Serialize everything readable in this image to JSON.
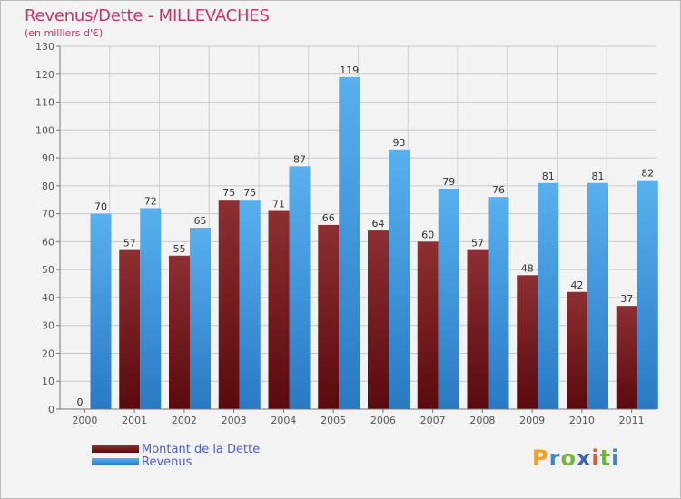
{
  "title": "Revenus/Dette - MILLEVACHES",
  "subtitle": "(en milliers d'€)",
  "logo": {
    "letters": [
      "P",
      "r",
      "o",
      "x",
      "i",
      "t",
      "i"
    ],
    "colors": [
      "#f0a02c",
      "#3f88c5",
      "#77b43f",
      "#3a66b0",
      "#e0562d",
      "#6fb23c",
      "#3f88c5"
    ]
  },
  "legend": [
    {
      "label": "Montant de la Dette",
      "color": "#6e1418"
    },
    {
      "label": "Revenus",
      "color": "#4da3e6"
    }
  ],
  "chart_data": {
    "type": "bar",
    "title": "Revenus/Dette - MILLEVACHES",
    "ylabel": "(en milliers d'€)",
    "xlabel": "",
    "ylim": [
      0,
      130
    ],
    "yticks": [
      0,
      10,
      20,
      30,
      40,
      50,
      60,
      70,
      80,
      90,
      100,
      110,
      120,
      130
    ],
    "grid": true,
    "categories": [
      "2000",
      "2001",
      "2002",
      "2003",
      "2004",
      "2005",
      "2006",
      "2007",
      "2008",
      "2009",
      "2010",
      "2011"
    ],
    "series": [
      {
        "name": "Montant de la Dette",
        "color": "#6e1418",
        "values": [
          0,
          57,
          55,
          75,
          71,
          66,
          64,
          60,
          57,
          48,
          42,
          37
        ]
      },
      {
        "name": "Revenus",
        "color": "#4da3e6",
        "values": [
          70,
          72,
          65,
          75,
          87,
          119,
          93,
          79,
          76,
          81,
          81,
          82
        ]
      }
    ]
  }
}
